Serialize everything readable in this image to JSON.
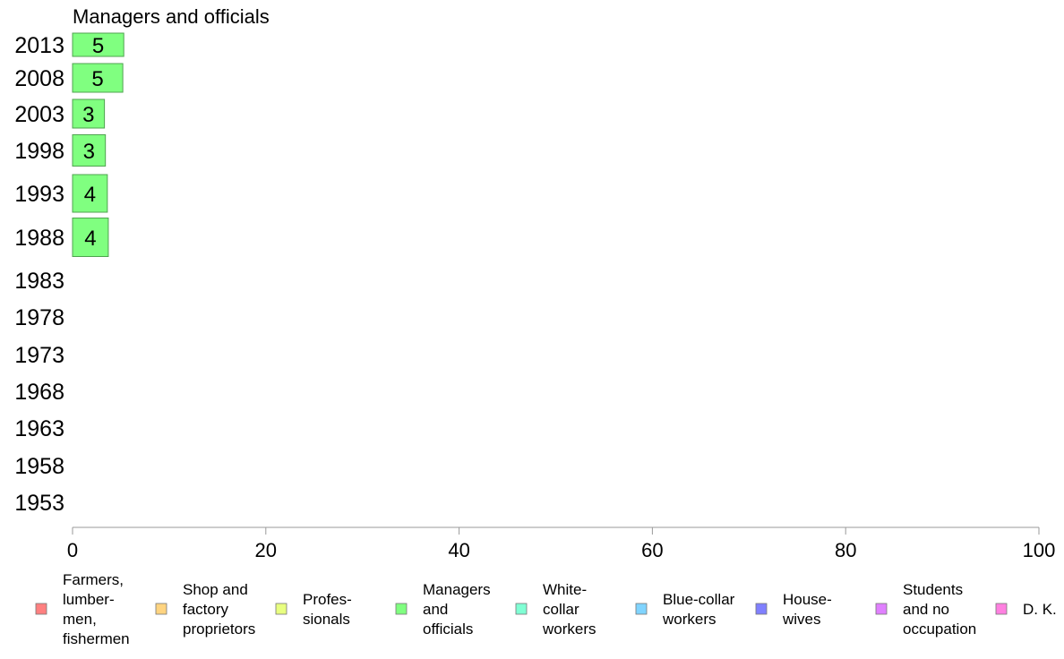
{
  "chart_data": {
    "type": "bar",
    "orientation": "horizontal",
    "title": "Managers and officials",
    "xlabel": "",
    "ylabel": "",
    "xlim": [
      0,
      100
    ],
    "x_ticks": [
      "0",
      "20",
      "40",
      "60",
      "80",
      "100"
    ],
    "categories": [
      "2013",
      "2008",
      "2003",
      "1998",
      "1993",
      "1988",
      "1983",
      "1978",
      "1973",
      "1968",
      "1963",
      "1958",
      "1953"
    ],
    "series": [
      {
        "name": "Managers and officials",
        "color": "#80ff80",
        "values": [
          5.3,
          5.2,
          3.3,
          3.4,
          3.6,
          3.7,
          null,
          null,
          null,
          null,
          null,
          null,
          null
        ],
        "labels": [
          "5",
          "5",
          "3",
          "3",
          "4",
          "4",
          "",
          "",
          "",
          "",
          "",
          "",
          ""
        ]
      }
    ],
    "legend": {
      "position": "bottom",
      "items": [
        {
          "lines": [
            "Farmers,",
            "lumber-",
            "men,",
            "fishermen"
          ],
          "color": "#ff8080"
        },
        {
          "lines": [
            "Shop and",
            "factory",
            "proprietors"
          ],
          "color": "#ffd480"
        },
        {
          "lines": [
            "Profes-",
            "sionals"
          ],
          "color": "#e8ff80"
        },
        {
          "lines": [
            "Managers",
            "and",
            "officials"
          ],
          "color": "#80ff80"
        },
        {
          "lines": [
            "White-",
            "collar",
            "workers"
          ],
          "color": "#80ffd4"
        },
        {
          "lines": [
            "Blue-collar",
            "workers"
          ],
          "color": "#80d4ff"
        },
        {
          "lines": [
            "House-",
            "wives"
          ],
          "color": "#8080ff"
        },
        {
          "lines": [
            "Students",
            "and no",
            "occupation"
          ],
          "color": "#e080ff"
        },
        {
          "lines": [
            "D. K."
          ],
          "color": "#ff80e0"
        }
      ]
    },
    "grid": false
  }
}
